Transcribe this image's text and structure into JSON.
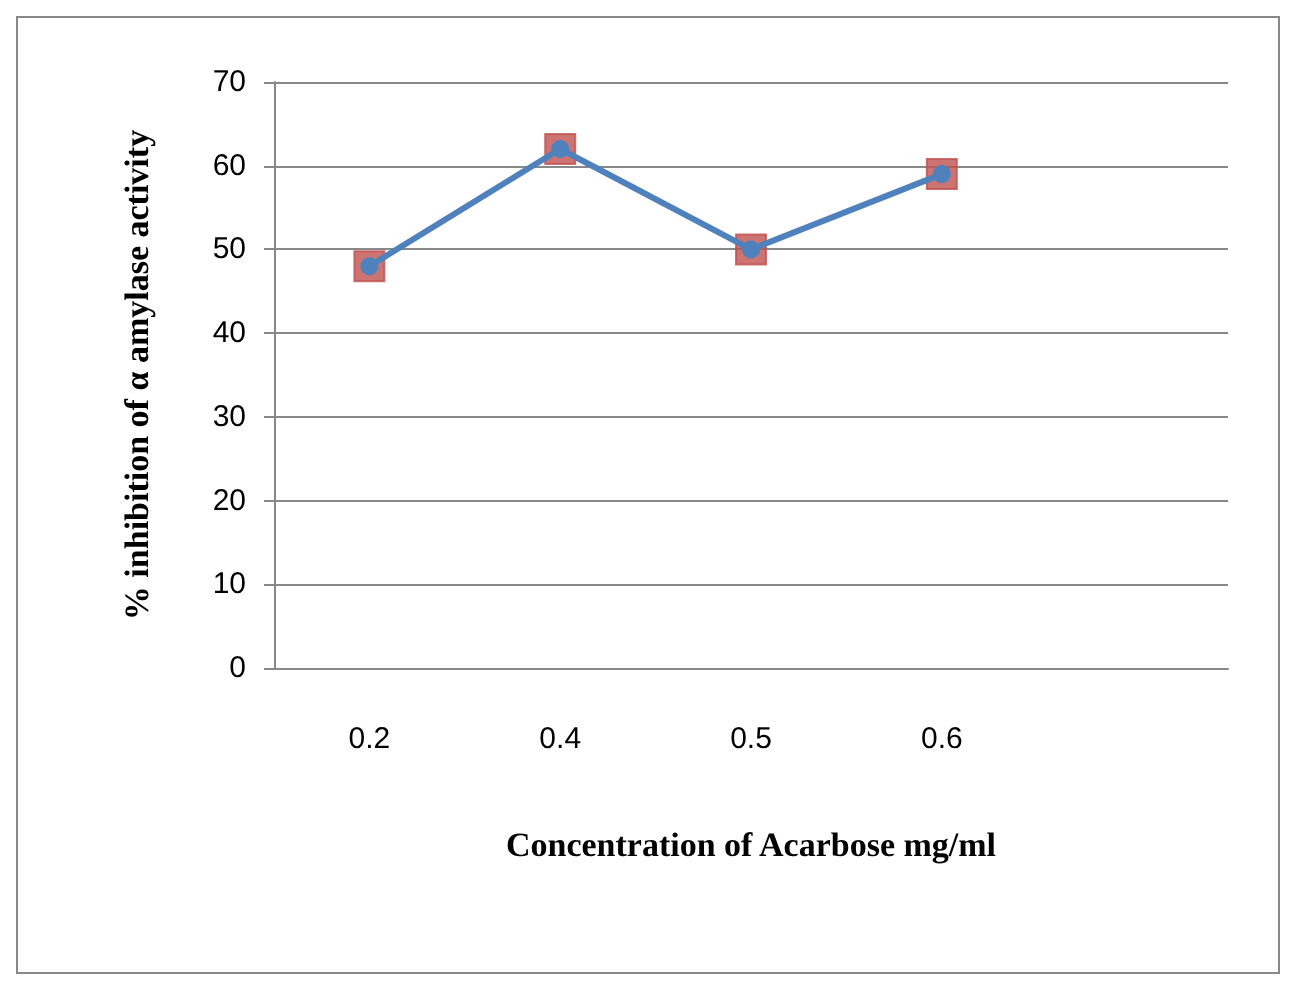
{
  "chart_data": {
    "type": "line",
    "xlabel": "Concentration of Acarbose mg/ml",
    "ylabel": "% inhibition of α amylase activity",
    "categories": [
      "0.2",
      "0.4",
      "0.5",
      "0.6",
      null
    ],
    "series": [
      {
        "color": "#4f81bd",
        "values": [
          48,
          62,
          50,
          59,
          null
        ],
        "marker": "circle",
        "line_style": "solid"
      },
      {
        "type": "scatter",
        "color": "#c0504d",
        "values": [
          48,
          62,
          50,
          59,
          null
        ],
        "marker": "square"
      }
    ],
    "ylim": [
      0,
      70
    ],
    "yticks": [
      0,
      10,
      20,
      30,
      40,
      50,
      60,
      70
    ],
    "grid": "y"
  }
}
